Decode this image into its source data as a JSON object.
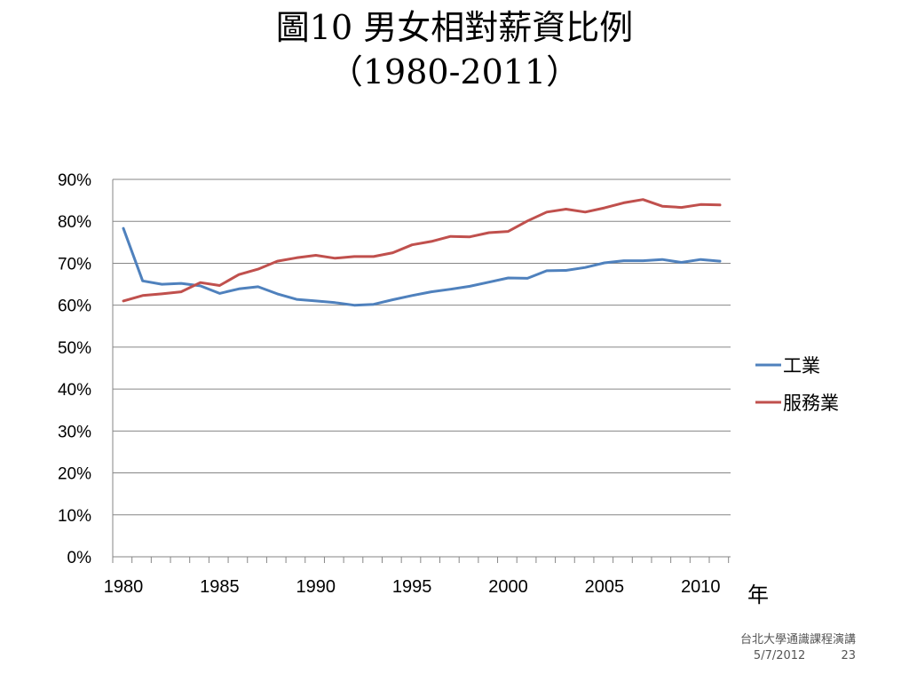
{
  "slide": {
    "title_line1": "圖10  男女相對薪資比例",
    "title_line2": "（1980-2011）"
  },
  "footer": {
    "org": "台北大學通識課程演講",
    "date": "5/7/2012",
    "page": "23"
  },
  "colors": {
    "industry": "#4F81BD",
    "service": "#C0504D",
    "grid": "#868686",
    "axis": "#868686",
    "text": "#000000"
  },
  "chart_data": {
    "type": "line",
    "title": "",
    "xlabel": "年",
    "ylabel": "",
    "x": [
      1980,
      1981,
      1982,
      1983,
      1984,
      1985,
      1986,
      1987,
      1988,
      1989,
      1990,
      1991,
      1992,
      1993,
      1994,
      1995,
      1996,
      1997,
      1998,
      1999,
      2000,
      2001,
      2002,
      2003,
      2004,
      2005,
      2006,
      2007,
      2008,
      2009,
      2010,
      2011
    ],
    "xticks": [
      "1980",
      "1985",
      "1990",
      "1995",
      "2000",
      "2005",
      "2010"
    ],
    "ylim": [
      0,
      0.9
    ],
    "yticks": [
      "0%",
      "10%",
      "20%",
      "30%",
      "40%",
      "50%",
      "60%",
      "70%",
      "80%",
      "90%"
    ],
    "grid": true,
    "legend_position": "right",
    "series": [
      {
        "name": "工業",
        "color": "#4F81BD",
        "values": [
          0.783,
          0.658,
          0.65,
          0.652,
          0.646,
          0.628,
          0.639,
          0.644,
          0.627,
          0.614,
          0.61,
          0.606,
          0.6,
          0.602,
          0.613,
          0.623,
          0.632,
          0.638,
          0.645,
          0.655,
          0.665,
          0.664,
          0.682,
          0.683,
          0.69,
          0.701,
          0.706,
          0.706,
          0.709,
          0.702,
          0.709,
          0.705
        ]
      },
      {
        "name": "服務業",
        "color": "#C0504D",
        "values": [
          0.61,
          0.623,
          0.627,
          0.632,
          0.654,
          0.647,
          0.673,
          0.686,
          0.705,
          0.713,
          0.719,
          0.712,
          0.716,
          0.716,
          0.725,
          0.744,
          0.752,
          0.764,
          0.763,
          0.773,
          0.776,
          0.801,
          0.822,
          0.829,
          0.822,
          0.832,
          0.844,
          0.852,
          0.836,
          0.833,
          0.84,
          0.839
        ]
      }
    ]
  }
}
